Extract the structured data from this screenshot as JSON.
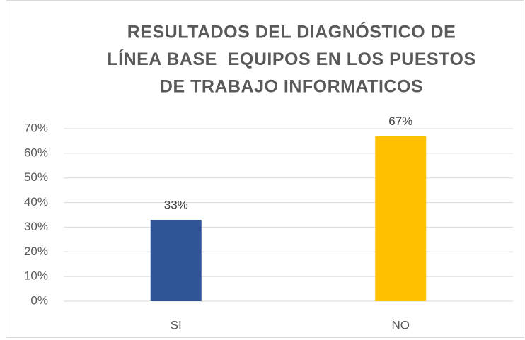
{
  "chart_data": {
    "type": "bar",
    "title": [
      "RESULTADOS DEL DIAGNÓSTICO DE",
      "LÍNEA BASE  EQUIPOS EN LOS PUESTOS",
      "DE TRABAJO INFORMATICOS"
    ],
    "categories": [
      "SI",
      "NO"
    ],
    "values": [
      33,
      67
    ],
    "value_labels": [
      "33%",
      "67%"
    ],
    "colors": [
      "#2f5597",
      "#ffc000"
    ],
    "ylim": [
      0,
      70
    ],
    "yticks": [
      {
        "value": 0,
        "label": "0%"
      },
      {
        "value": 10,
        "label": "10%"
      },
      {
        "value": 20,
        "label": "20%"
      },
      {
        "value": 30,
        "label": "30%"
      },
      {
        "value": 40,
        "label": "40%"
      },
      {
        "value": 50,
        "label": "50%"
      },
      {
        "value": 60,
        "label": "60%"
      },
      {
        "value": 70,
        "label": "70%"
      }
    ],
    "grid": true
  }
}
